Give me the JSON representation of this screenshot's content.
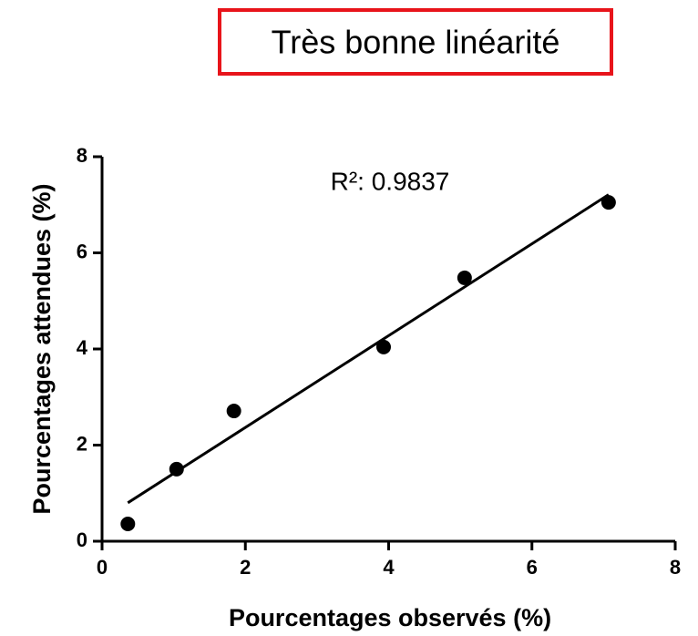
{
  "chart_data": {
    "type": "scatter",
    "title": "Très bonne linéarité",
    "annotation": "R²: 0.9837",
    "x_label": "Pourcentages observés (%)",
    "y_label": "Pourcentages attendues (%)",
    "x": [
      0.36,
      1.04,
      1.84,
      3.93,
      5.06,
      7.07
    ],
    "values": [
      0.36,
      1.5,
      2.71,
      4.04,
      5.48,
      7.05
    ],
    "color": "#000000",
    "trendline": {
      "x": [
        0.36,
        7.07
      ],
      "values": [
        0.8,
        7.21
      ]
    },
    "xlim": [
      0,
      8
    ],
    "xticks": [
      0,
      2,
      4,
      6,
      8
    ],
    "ylim": [
      0,
      8
    ],
    "yticks": [
      0,
      2,
      4,
      6,
      8
    ],
    "grid": false
  }
}
